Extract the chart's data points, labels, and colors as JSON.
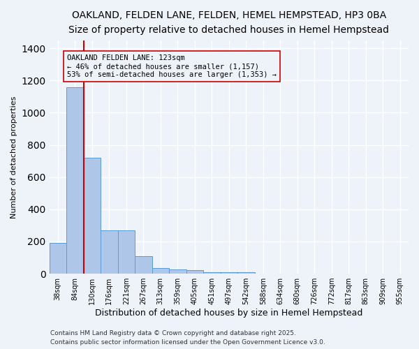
{
  "title1": "OAKLAND, FELDEN LANE, FELDEN, HEMEL HEMPSTEAD, HP3 0BA",
  "title2": "Size of property relative to detached houses in Hemel Hempstead",
  "xlabel": "Distribution of detached houses by size in Hemel Hempstead",
  "ylabel": "Number of detached properties",
  "categories": [
    "38sqm",
    "84sqm",
    "130sqm",
    "176sqm",
    "221sqm",
    "267sqm",
    "313sqm",
    "359sqm",
    "405sqm",
    "451sqm",
    "497sqm",
    "542sqm",
    "588sqm",
    "634sqm",
    "680sqm",
    "726sqm",
    "772sqm",
    "817sqm",
    "863sqm",
    "909sqm",
    "955sqm"
  ],
  "values": [
    190,
    1157,
    720,
    270,
    270,
    108,
    35,
    25,
    20,
    10,
    10,
    10,
    2,
    0,
    0,
    0,
    0,
    0,
    0,
    0,
    0
  ],
  "bar_color": "#aec6e8",
  "bar_edge_color": "#5b9bd5",
  "vline_color": "#cc0000",
  "vline_pos": 1.5,
  "ylim": [
    0,
    1450
  ],
  "annotation_text": "OAKLAND FELDEN LANE: 123sqm\n← 46% of detached houses are smaller (1,157)\n53% of semi-detached houses are larger (1,353) →",
  "footer1": "Contains HM Land Registry data © Crown copyright and database right 2025.",
  "footer2": "Contains public sector information licensed under the Open Government Licence v3.0.",
  "bg_color": "#eef2f9",
  "grid_color": "#ffffff",
  "title1_fontsize": 10,
  "title2_fontsize": 9,
  "xlabel_fontsize": 9,
  "ylabel_fontsize": 8,
  "tick_fontsize": 7,
  "annot_fontsize": 7.5,
  "footer_fontsize": 6.5
}
